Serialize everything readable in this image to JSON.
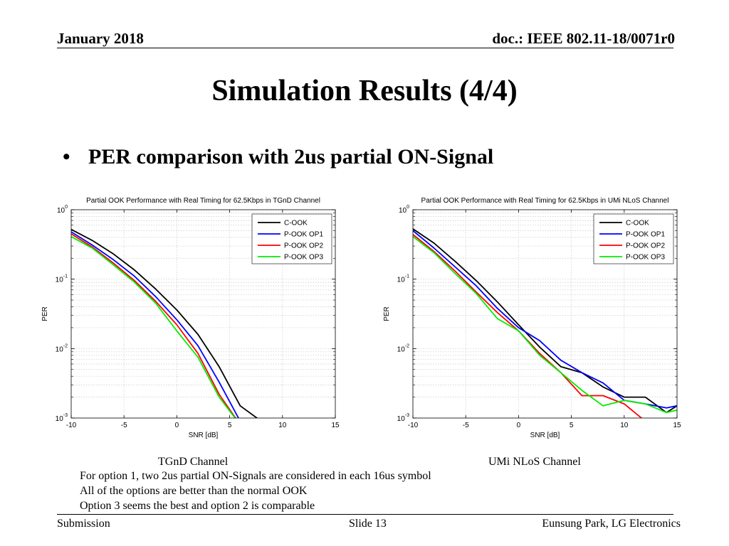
{
  "header": {
    "date": "January 2018",
    "doc": "doc.: IEEE 802.11-18/0071r0"
  },
  "title": "Simulation Results (4/4)",
  "bullet": {
    "marker": "•",
    "text": "PER comparison with 2us partial ON-Signal"
  },
  "captions": [
    "TGnD Channel",
    "UMi NLoS Channel"
  ],
  "notes": [
    "For option 1,  two 2us partial ON-Signals are considered in each 16us symbol",
    "All of the options are better than the normal OOK",
    "Option 3 seems the best and option 2 is comparable"
  ],
  "footer": {
    "left": "Submission",
    "center": "Slide 13",
    "right": "Eunsung Park, LG Electronics"
  },
  "colors": {
    "C-OOK": "#000000",
    "P-OOK OP1": "#0000ff",
    "P-OOK OP2": "#ff0000",
    "P-OOK OP3": "#00ee00"
  },
  "chart_data": [
    {
      "type": "line",
      "title": "Partial OOK Performance with Real Timing for 62.5Kbps in TGnD Channel",
      "xlabel": "SNR [dB]",
      "ylabel": "PER",
      "xlim": [
        -10,
        15
      ],
      "ylim": [
        0.001,
        1
      ],
      "yscale": "log",
      "xticks": [
        "-10",
        "-5",
        "0",
        "5",
        "10",
        "15"
      ],
      "yticks": [
        {
          "base": "10",
          "exp": "0"
        },
        {
          "base": "10",
          "exp": "-1"
        },
        {
          "base": "10",
          "exp": "-2"
        },
        {
          "base": "10",
          "exp": "-3"
        }
      ],
      "grid": true,
      "legend_position": "top-right",
      "x": [
        -10,
        -8,
        -6,
        -4,
        -2,
        0,
        2,
        4,
        6,
        8
      ],
      "series": [
        {
          "name": "C-OOK",
          "color": "#000000",
          "values": [
            0.52,
            0.36,
            0.23,
            0.135,
            0.072,
            0.036,
            0.016,
            0.0055,
            0.0015,
            0.0009
          ]
        },
        {
          "name": "P-OOK OP1",
          "color": "#0000ff",
          "values": [
            0.48,
            0.31,
            0.19,
            0.11,
            0.056,
            0.026,
            0.011,
            0.0033,
            0.0009,
            null
          ]
        },
        {
          "name": "P-OOK OP2",
          "color": "#ff0000",
          "values": [
            0.45,
            0.29,
            0.17,
            0.095,
            0.048,
            0.022,
            0.0085,
            0.0022,
            0.0008,
            null
          ]
        },
        {
          "name": "P-OOK OP3",
          "color": "#00ee00",
          "values": [
            0.41,
            0.28,
            0.16,
            0.09,
            0.045,
            0.018,
            0.0075,
            0.002,
            0.0008,
            null
          ]
        }
      ]
    },
    {
      "type": "line",
      "title": "Partial OOK Performance with Real Timing for 62.5Kbps in UMi NLoS Channel",
      "xlabel": "SNR [dB]",
      "ylabel": "PER",
      "xlim": [
        -10,
        15
      ],
      "ylim": [
        0.001,
        1
      ],
      "yscale": "log",
      "xticks": [
        "-10",
        "-5",
        "0",
        "5",
        "10",
        "15"
      ],
      "yticks": [
        {
          "base": "10",
          "exp": "0"
        },
        {
          "base": "10",
          "exp": "-1"
        },
        {
          "base": "10",
          "exp": "-2"
        },
        {
          "base": "10",
          "exp": "-3"
        }
      ],
      "grid": true,
      "legend_position": "top-right",
      "x": [
        -10,
        -8,
        -6,
        -4,
        -2,
        0,
        2,
        4,
        6,
        8,
        10,
        12,
        14,
        15
      ],
      "series": [
        {
          "name": "C-OOK",
          "color": "#000000",
          "values": [
            0.53,
            0.33,
            0.18,
            0.095,
            0.047,
            0.022,
            0.0105,
            0.0055,
            0.0045,
            0.0028,
            0.002,
            0.002,
            0.0012,
            0.0015
          ]
        },
        {
          "name": "P-OOK OP1",
          "color": "#0000ff",
          "values": [
            0.5,
            0.28,
            0.15,
            0.08,
            0.038,
            0.02,
            0.013,
            0.0068,
            0.0045,
            0.0032,
            0.0018,
            0.0016,
            0.0014,
            0.0015
          ]
        },
        {
          "name": "P-OOK OP2",
          "color": "#ff0000",
          "values": [
            0.44,
            0.25,
            0.13,
            0.065,
            0.033,
            0.018,
            0.0085,
            0.0045,
            0.0021,
            0.0021,
            0.0016,
            0.0009,
            0.0009,
            0.001
          ]
        },
        {
          "name": "P-OOK OP3",
          "color": "#00ee00",
          "values": [
            0.41,
            0.24,
            0.12,
            0.062,
            0.027,
            0.018,
            0.008,
            0.0045,
            0.0025,
            0.0015,
            0.0018,
            0.0016,
            0.0012,
            0.0013
          ]
        }
      ]
    }
  ]
}
